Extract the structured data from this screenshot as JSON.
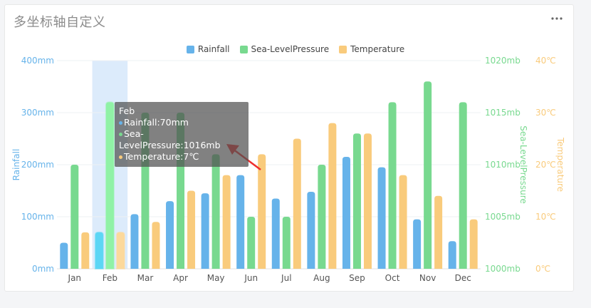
{
  "card": {
    "title": "多坐标轴自定义",
    "more_icon": "ellipsis-horizontal-icon"
  },
  "colors": {
    "rainfall": "#66b3ea",
    "pressure": "#78d98f",
    "temperature": "#f9cb7c",
    "highlight_band": "#dcebfb",
    "hover_rainfall": "#5cd6f5",
    "hover_pressure": "#90f2a6",
    "hover_temperature": "#fcd99b",
    "arrow": "#ef2f2f"
  },
  "tooltip": {
    "title": "Feb",
    "lines": [
      "Rainfall:70mm",
      "Sea-LevelPressure:1016mb",
      "Temperature:7℃"
    ]
  },
  "chart_data": {
    "type": "bar",
    "title": "多坐标轴自定义",
    "categories": [
      "Jan",
      "Feb",
      "Mar",
      "Apr",
      "May",
      "Jun",
      "Jul",
      "Aug",
      "Sep",
      "Oct",
      "Nov",
      "Dec"
    ],
    "series": [
      {
        "name": "Rainfall",
        "axis": "left",
        "unit": "mm",
        "values": [
          50,
          70,
          105,
          130,
          145,
          180,
          135,
          148,
          215,
          195,
          95,
          53
        ]
      },
      {
        "name": "Sea-LevelPressure",
        "axis": "right1",
        "unit": "mb",
        "values": [
          1010,
          1016,
          1015,
          1015,
          1011,
          1005,
          1005,
          1010,
          1013,
          1016,
          1018,
          1016
        ]
      },
      {
        "name": "Temperature",
        "axis": "right2",
        "unit": "℃",
        "values": [
          7,
          7,
          9,
          15,
          18,
          22,
          25,
          28,
          26,
          18,
          14,
          9.5
        ]
      }
    ],
    "axes": {
      "left": {
        "label": "Rainfall",
        "ticks": [
          "0mm",
          "100mm",
          "200mm",
          "300mm",
          "400mm"
        ],
        "min": 0,
        "max": 400
      },
      "right1": {
        "label": "Sea-LevelPressure",
        "ticks": [
          "1000mb",
          "1005mb",
          "1010mb",
          "1015mb",
          "1020mb"
        ],
        "min": 1000,
        "max": 1020
      },
      "right2": {
        "label": "Temperature",
        "ticks": [
          "0℃",
          "10℃",
          "20℃",
          "30℃",
          "40℃"
        ],
        "min": 0,
        "max": 40
      }
    },
    "highlighted_category": "Feb",
    "legend_position": "top-center",
    "grid": true
  }
}
